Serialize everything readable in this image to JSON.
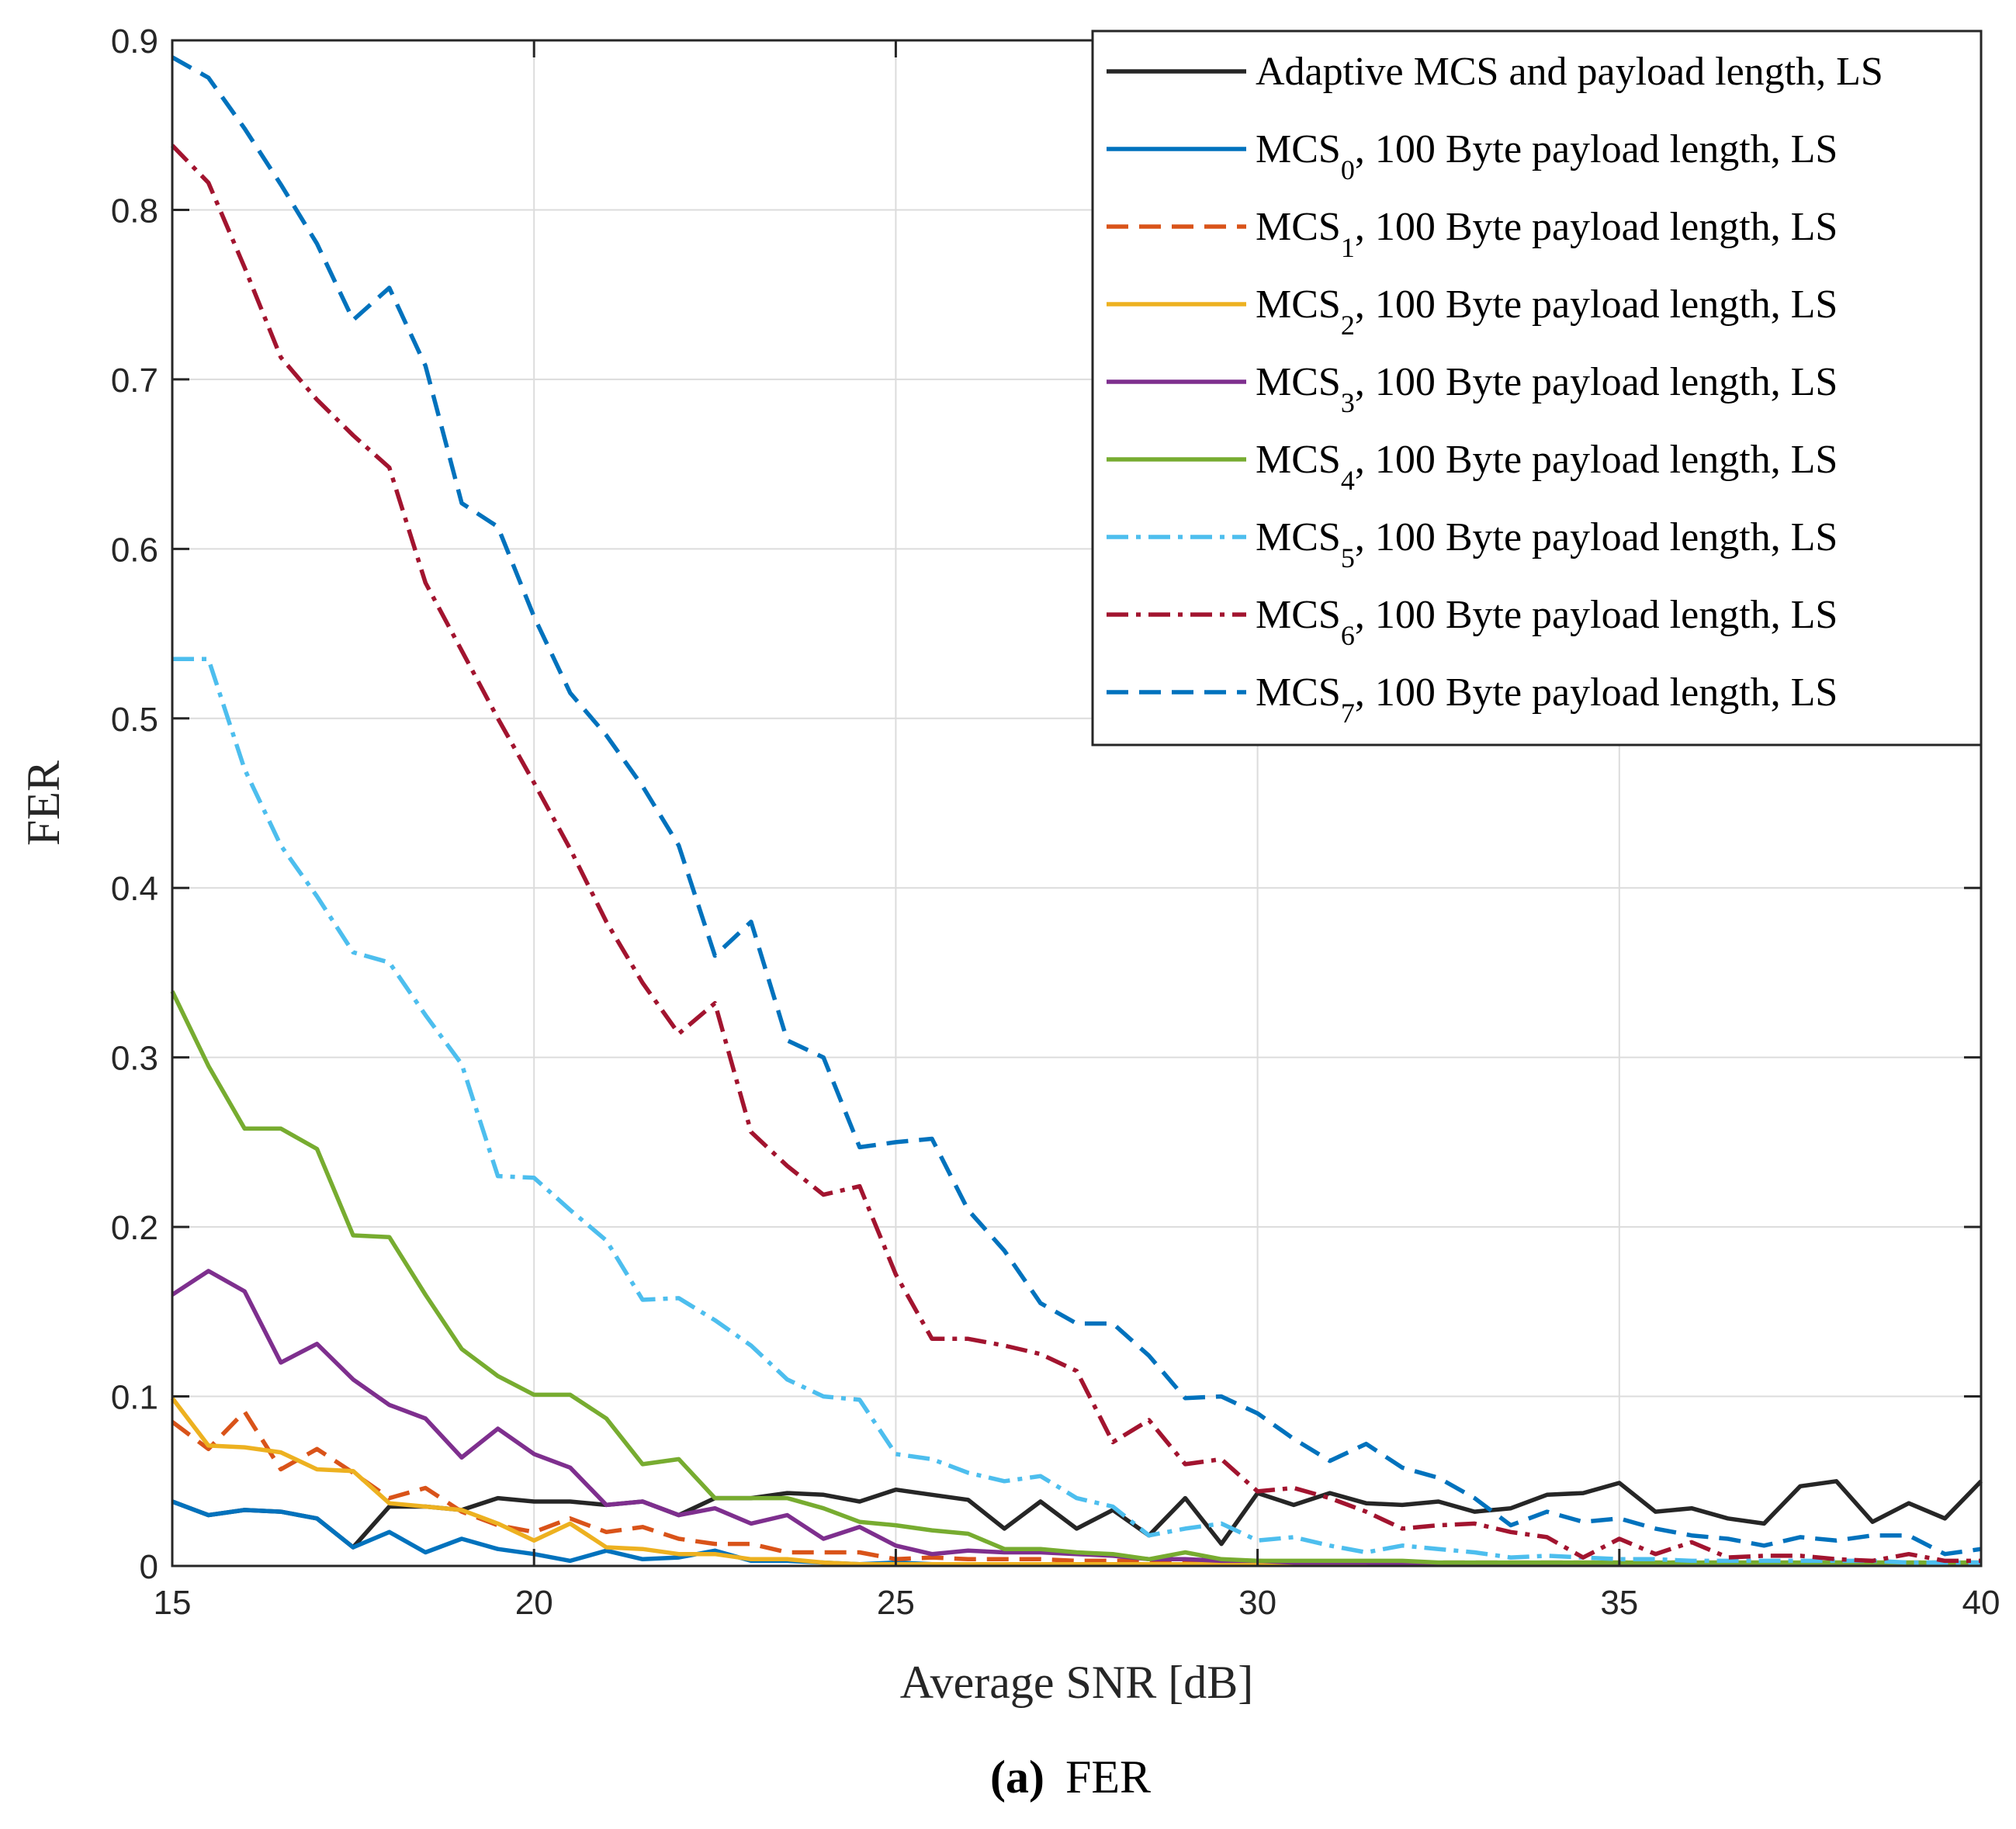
{
  "chart_data": {
    "type": "line",
    "xlabel": "Average SNR [dB]",
    "ylabel": "FER",
    "xlim": [
      15,
      40
    ],
    "ylim": [
      0,
      0.9
    ],
    "xticks": [
      "15",
      "20",
      "25",
      "30",
      "35",
      "40"
    ],
    "yticks": [
      "0",
      "0.1",
      "0.2",
      "0.3",
      "0.4",
      "0.5",
      "0.6",
      "0.7",
      "0.8",
      "0.9"
    ],
    "grid": true,
    "legend_position": "top-right",
    "caption": {
      "label": "(a)",
      "text": "FER"
    },
    "x": [
      15,
      15.5,
      16,
      16.5,
      17,
      17.5,
      18,
      18.5,
      19,
      19.5,
      20,
      20.5,
      21,
      21.5,
      22,
      22.5,
      23,
      23.5,
      24,
      24.5,
      25,
      25.5,
      26,
      26.5,
      27,
      27.5,
      28,
      28.5,
      29,
      29.5,
      30,
      30.5,
      31,
      31.5,
      32,
      32.5,
      33,
      33.5,
      34,
      34.5,
      35,
      35.5,
      36,
      36.5,
      37,
      37.5,
      38,
      38.5,
      39,
      39.5,
      40
    ],
    "series": [
      {
        "name": "Adaptive MCS and payload length, LS",
        "main": "Adaptive MCS and payload length, LS",
        "sub": "",
        "rest": "",
        "color": "#262626",
        "dash": "none",
        "values": [
          0.038,
          0.03,
          0.033,
          0.032,
          0.028,
          0.011,
          0.035,
          0.035,
          0.033,
          0.04,
          0.038,
          0.038,
          0.036,
          0.038,
          0.03,
          0.04,
          0.04,
          0.043,
          0.042,
          0.038,
          0.045,
          0.042,
          0.039,
          0.022,
          0.038,
          0.022,
          0.033,
          0.018,
          0.04,
          0.013,
          0.043,
          0.036,
          0.043,
          0.037,
          0.036,
          0.038,
          0.032,
          0.034,
          0.042,
          0.043,
          0.049,
          0.032,
          0.034,
          0.028,
          0.025,
          0.047,
          0.05,
          0.026,
          0.037,
          0.028,
          0.05
        ]
      },
      {
        "name": "MCS0, 100 Byte payload length, LS",
        "main": "MCS",
        "sub": "0",
        "rest": ", 100 Byte payload length, LS",
        "color": "#0072bd",
        "dash": "none",
        "values": [
          0.038,
          0.03,
          0.033,
          0.032,
          0.028,
          0.011,
          0.02,
          0.008,
          0.016,
          0.01,
          0.007,
          0.003,
          0.009,
          0.004,
          0.005,
          0.009,
          0.003,
          0.003,
          0.002,
          0.001,
          0.002,
          0.001,
          0.001,
          0.001,
          0.001,
          0.001,
          0.001,
          0.001,
          0.001,
          0.001,
          0.001,
          0.001,
          0.001,
          0.001,
          0.001,
          0.001,
          0.001,
          0.001,
          0.001,
          0.001,
          0.001,
          0.001,
          0.001,
          0.001,
          0.001,
          0.001,
          0.001,
          0.001,
          0.001,
          0.001,
          0.001
        ]
      },
      {
        "name": "MCS1, 100 Byte payload length, LS",
        "main": "MCS",
        "sub": "1",
        "rest": ", 100 Byte payload length, LS",
        "color": "#d95319",
        "dash": "28,14",
        "values": [
          0.085,
          0.069,
          0.091,
          0.057,
          0.069,
          0.055,
          0.04,
          0.046,
          0.032,
          0.024,
          0.02,
          0.028,
          0.02,
          0.023,
          0.016,
          0.013,
          0.013,
          0.008,
          0.008,
          0.008,
          0.004,
          0.005,
          0.004,
          0.004,
          0.004,
          0.003,
          0.003,
          0.003,
          0.003,
          0.003,
          0.002,
          0.002,
          0.002,
          0.002,
          0.002,
          0.002,
          0.002,
          0.002,
          0.002,
          0.002,
          0.002,
          0.002,
          0.002,
          0.002,
          0.002,
          0.002,
          0.002,
          0.002,
          0.002,
          0.002,
          0.002
        ]
      },
      {
        "name": "MCS2, 100 Byte payload length, LS",
        "main": "MCS",
        "sub": "2",
        "rest": ", 100 Byte payload length, LS",
        "color": "#edb120",
        "dash": "none",
        "values": [
          0.099,
          0.071,
          0.07,
          0.067,
          0.057,
          0.056,
          0.037,
          0.035,
          0.033,
          0.025,
          0.015,
          0.025,
          0.011,
          0.01,
          0.007,
          0.007,
          0.004,
          0.004,
          0.002,
          0.001,
          0.001,
          0.001,
          0.001,
          0.001,
          0.001,
          0.001,
          0.001,
          0.001,
          0.001,
          0.001,
          0.001,
          0.001,
          0.001,
          0.001,
          0.001,
          0.001,
          0.001,
          0.001,
          0.001,
          0.001,
          0.001,
          0.001,
          0.001,
          0.001,
          0.001,
          0.001,
          0.001,
          0.001,
          0.001,
          0.001,
          0.001
        ]
      },
      {
        "name": "MCS3, 100 Byte payload length, LS",
        "main": "MCS",
        "sub": "3",
        "rest": ", 100 Byte payload length, LS",
        "color": "#7e2f8e",
        "dash": "none",
        "values": [
          0.16,
          0.174,
          0.162,
          0.12,
          0.131,
          0.11,
          0.095,
          0.087,
          0.064,
          0.081,
          0.066,
          0.058,
          0.036,
          0.038,
          0.03,
          0.034,
          0.025,
          0.03,
          0.016,
          0.023,
          0.012,
          0.007,
          0.009,
          0.008,
          0.008,
          0.007,
          0.006,
          0.004,
          0.004,
          0.003,
          0.003,
          0.002,
          0.002,
          0.002,
          0.001,
          0.001,
          0.001,
          0.001,
          0.001,
          0.001,
          0.001,
          0.001,
          0.001,
          0.001,
          0.001,
          0.001,
          0.001,
          0.001,
          0.001,
          0.001,
          0.001
        ]
      },
      {
        "name": "MCS4, 100 Byte payload length, LS",
        "main": "MCS",
        "sub": "4",
        "rest": ", 100 Byte payload length, LS",
        "color": "#77ac30",
        "dash": "none",
        "values": [
          0.339,
          0.295,
          0.258,
          0.258,
          0.246,
          0.195,
          0.194,
          0.16,
          0.128,
          0.112,
          0.101,
          0.101,
          0.087,
          0.06,
          0.063,
          0.04,
          0.04,
          0.04,
          0.034,
          0.026,
          0.024,
          0.021,
          0.019,
          0.01,
          0.01,
          0.008,
          0.007,
          0.004,
          0.008,
          0.004,
          0.003,
          0.003,
          0.003,
          0.003,
          0.003,
          0.002,
          0.002,
          0.002,
          0.002,
          0.002,
          0.002,
          0.002,
          0.002,
          0.002,
          0.002,
          0.002,
          0.002,
          0.002,
          0.002,
          0.002,
          0.002
        ]
      },
      {
        "name": "MCS5, 100 Byte payload length, LS",
        "main": "MCS",
        "sub": "5",
        "rest": ", 100 Byte payload length, LS",
        "color": "#4dbeee",
        "dash": "28,10,6,10",
        "values": [
          0.535,
          0.535,
          0.47,
          0.425,
          0.395,
          0.362,
          0.356,
          0.325,
          0.296,
          0.23,
          0.229,
          0.21,
          0.192,
          0.157,
          0.158,
          0.145,
          0.13,
          0.11,
          0.1,
          0.098,
          0.066,
          0.063,
          0.055,
          0.05,
          0.053,
          0.04,
          0.035,
          0.018,
          0.022,
          0.025,
          0.015,
          0.017,
          0.012,
          0.008,
          0.012,
          0.01,
          0.008,
          0.005,
          0.006,
          0.005,
          0.004,
          0.004,
          0.003,
          0.003,
          0.003,
          0.003,
          0.003,
          0.003,
          0.002,
          0.002,
          0.002
        ]
      },
      {
        "name": "MCS6, 100 Byte payload length, LS",
        "main": "MCS",
        "sub": "6",
        "rest": ", 100 Byte payload length, LS",
        "color": "#a2142f",
        "dash": "28,10,6,10",
        "values": [
          0.838,
          0.816,
          0.766,
          0.713,
          0.688,
          0.667,
          0.648,
          0.58,
          0.54,
          0.5,
          0.462,
          0.423,
          0.38,
          0.344,
          0.314,
          0.332,
          0.256,
          0.236,
          0.219,
          0.224,
          0.172,
          0.134,
          0.134,
          0.13,
          0.125,
          0.115,
          0.073,
          0.086,
          0.06,
          0.063,
          0.044,
          0.046,
          0.04,
          0.032,
          0.022,
          0.024,
          0.025,
          0.02,
          0.017,
          0.005,
          0.016,
          0.007,
          0.014,
          0.005,
          0.006,
          0.006,
          0.004,
          0.003,
          0.007,
          0.003,
          0.003
        ]
      },
      {
        "name": "MCS7, 100 Byte payload length, LS",
        "main": "MCS",
        "sub": "7",
        "rest": ", 100 Byte payload length, LS",
        "color": "#0072bd",
        "dash": "28,14",
        "values": [
          0.89,
          0.878,
          0.848,
          0.815,
          0.78,
          0.735,
          0.754,
          0.708,
          0.627,
          0.613,
          0.56,
          0.515,
          0.49,
          0.46,
          0.425,
          0.36,
          0.38,
          0.31,
          0.3,
          0.247,
          0.25,
          0.252,
          0.21,
          0.186,
          0.155,
          0.143,
          0.143,
          0.124,
          0.099,
          0.1,
          0.09,
          0.075,
          0.062,
          0.072,
          0.058,
          0.052,
          0.04,
          0.024,
          0.032,
          0.026,
          0.028,
          0.022,
          0.018,
          0.016,
          0.012,
          0.017,
          0.015,
          0.018,
          0.018,
          0.007,
          0.01
        ]
      }
    ]
  }
}
